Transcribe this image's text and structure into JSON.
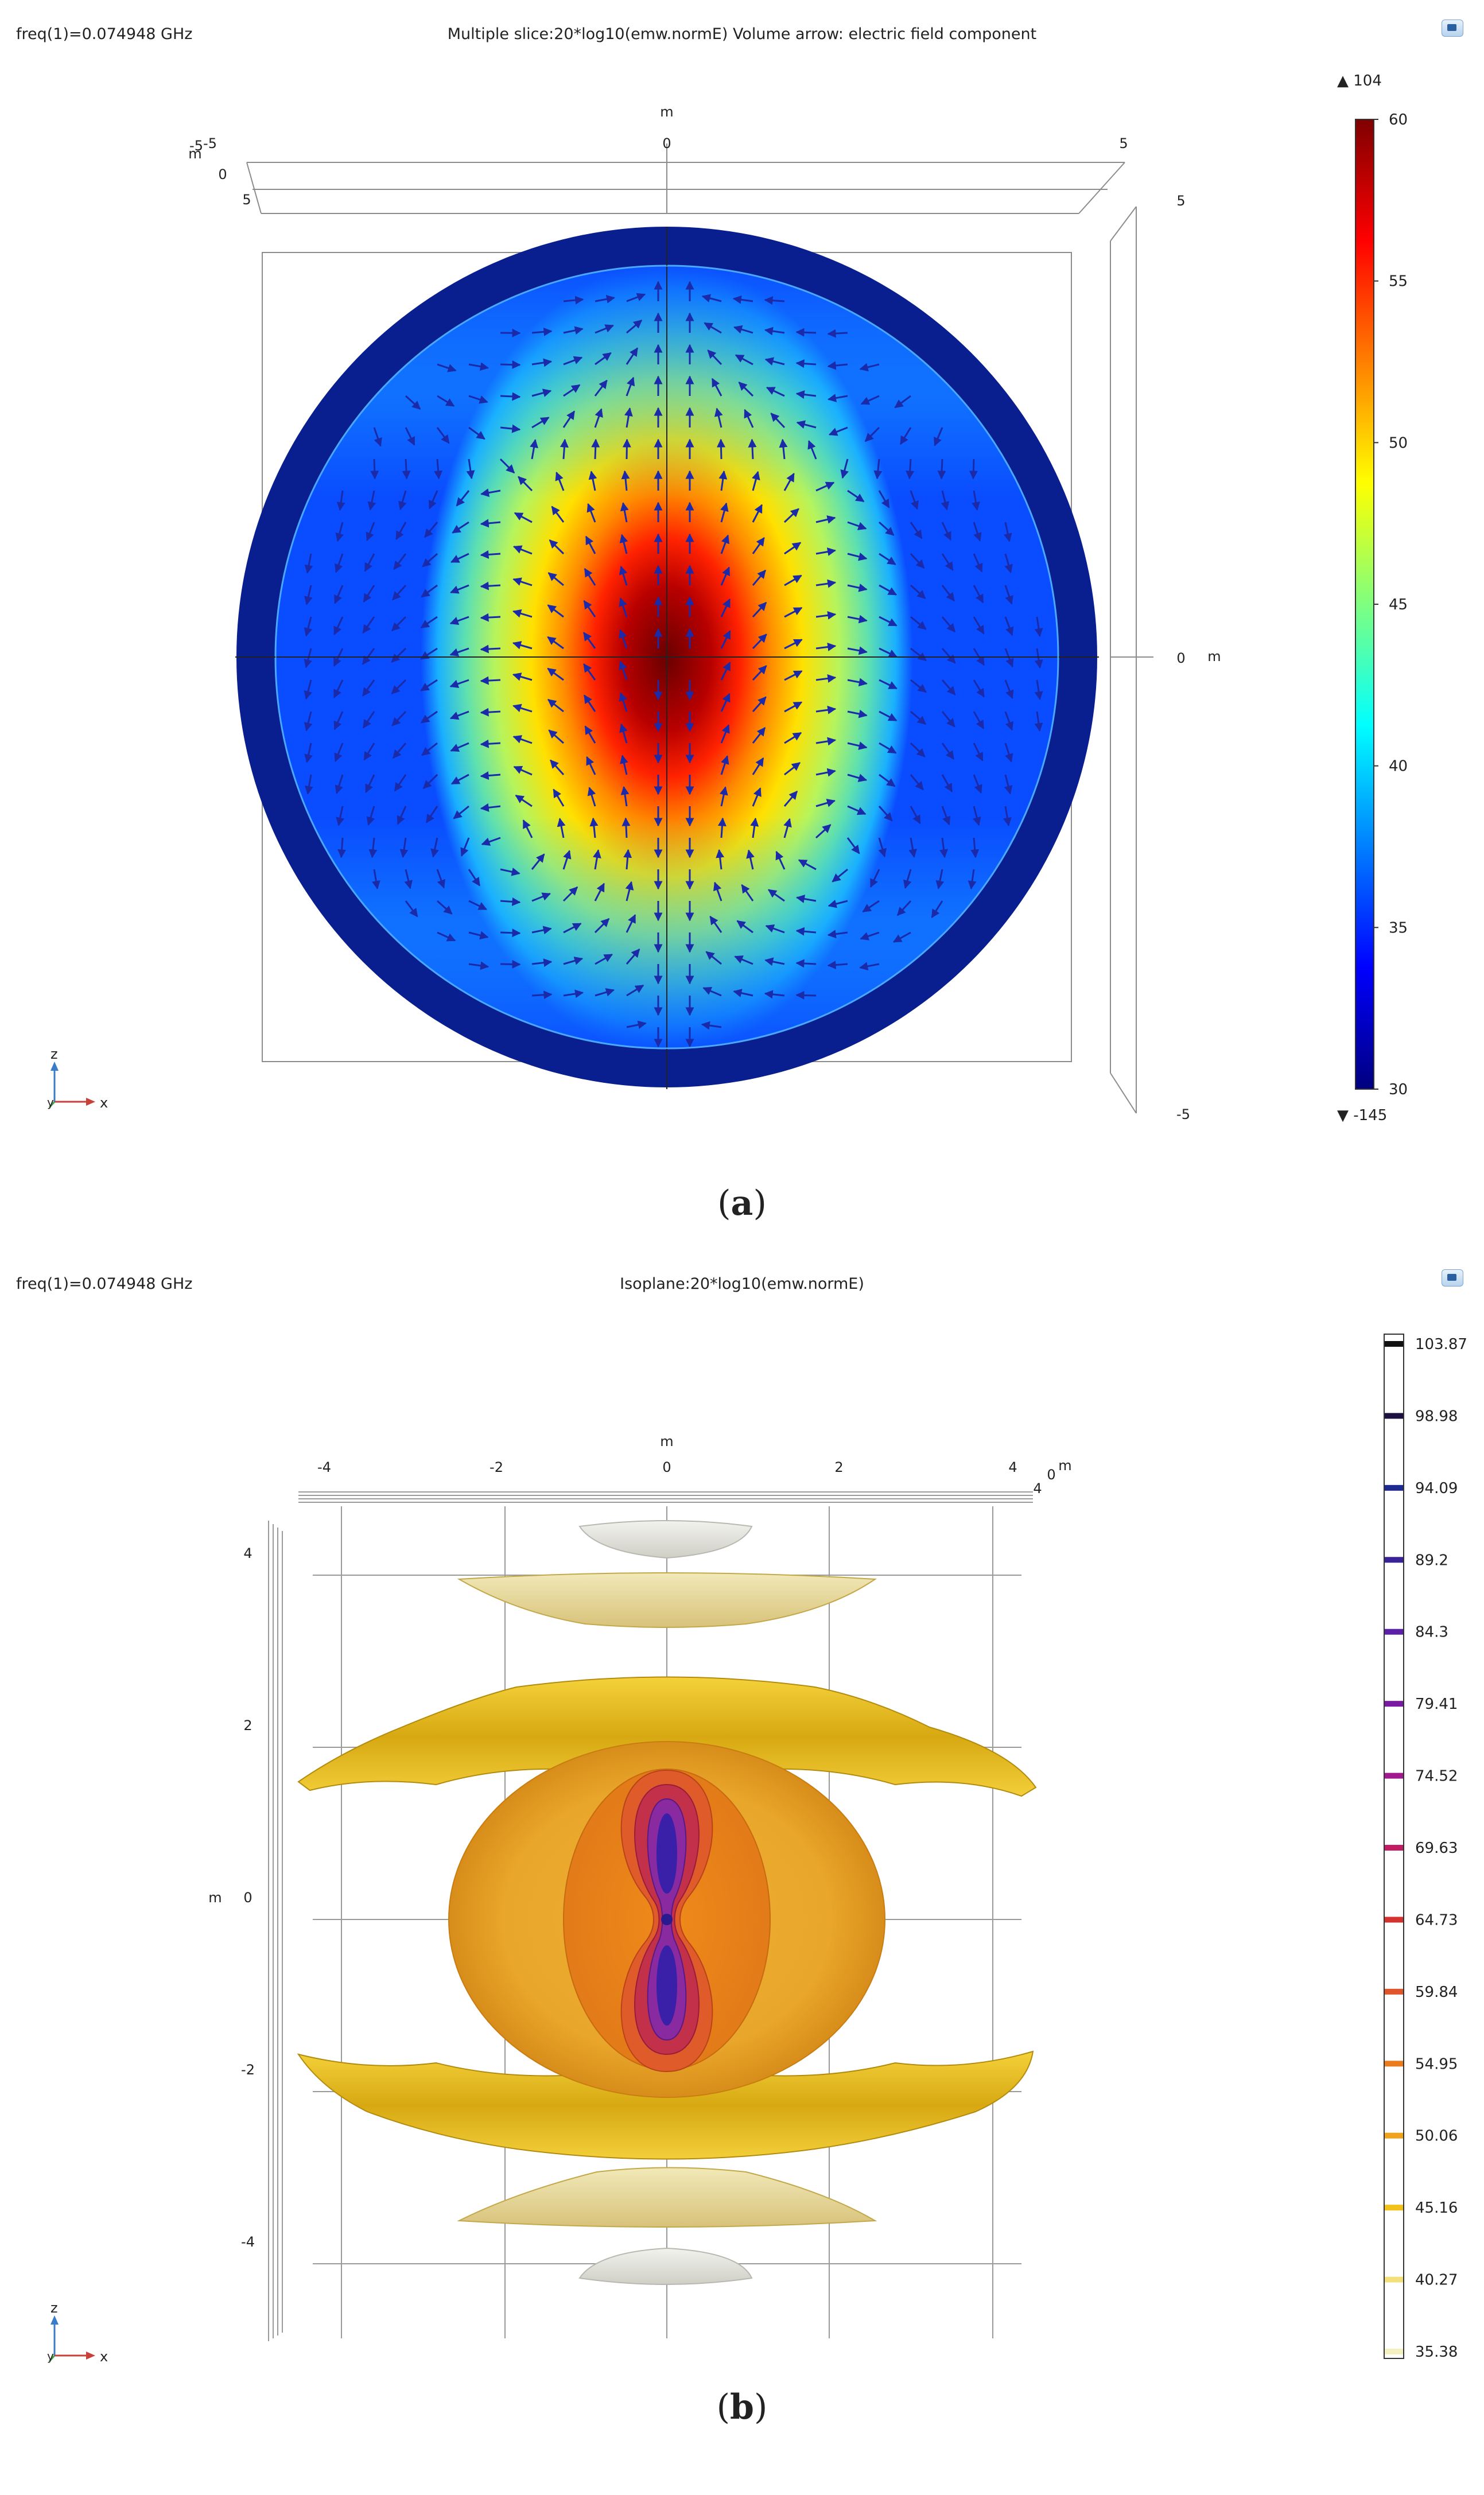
{
  "panel_a": {
    "freq_label": "freq(1)=0.074948 GHz",
    "title": "Multiple slice:20*log10(emw.normE) Volume arrow: electric field component",
    "caption_open": "(",
    "caption_letter": "a",
    "caption_close": ")",
    "triad": {
      "z": "z",
      "x": "x",
      "y": "y"
    }
  },
  "panel_b": {
    "freq_label": "freq(1)=0.074948 GHz",
    "title": "Isoplane:20*log10(emw.normE)",
    "caption_open": "(",
    "caption_letter": "b",
    "caption_close": ")",
    "triad": {
      "z": "z",
      "x": "x",
      "y": "y"
    }
  },
  "colors": {
    "jet": [
      "#00007f",
      "#0000ff",
      "#007fff",
      "#00ffff",
      "#7fff7f",
      "#ffff00",
      "#ff7f00",
      "#ff0000",
      "#7f0000"
    ],
    "arrow": "#1a2aa8",
    "ring": "#0a1f8f",
    "grid": "#9a9a9a",
    "iso_yellow": "#e8c21a",
    "iso_orange": "#e59a1a"
  },
  "chart_data": [
    {
      "type": "heatmap",
      "title": "Multiple slice:20*log10(emw.normE) Volume arrow: electric field component",
      "colorbar": {
        "range": [
          30,
          60
        ],
        "ticks": [
          "60",
          "55",
          "50",
          "45",
          "40",
          "35",
          "30"
        ],
        "max_marker": "▲ 104",
        "min_marker": "▼ -145"
      },
      "x_axis": {
        "unit": "m",
        "ticks": [
          "-5",
          "0",
          "5"
        ]
      },
      "y_axis": {
        "ticks": [
          "-5",
          "0",
          "5"
        ]
      },
      "z_axis": {
        "unit": "m",
        "ticks": [
          "5",
          "0",
          "-5"
        ]
      },
      "field": "peak at center, elongated vertically; lobes spread horizontally"
    },
    {
      "type": "heatmap",
      "title": "Isoplane:20*log10(emw.normE)",
      "levels": [
        "103.87",
        "98.98",
        "94.09",
        "89.2",
        "84.3",
        "79.41",
        "74.52",
        "69.63",
        "64.73",
        "59.84",
        "54.95",
        "50.06",
        "45.16",
        "40.27",
        "35.38"
      ],
      "level_colors": [
        "#111111",
        "#1c1140",
        "#1d2a8f",
        "#3a2399",
        "#5a21a8",
        "#7a1aa0",
        "#a0198f",
        "#c21d64",
        "#d4322e",
        "#e0552a",
        "#ec7c1a",
        "#f0a21a",
        "#f2c21a",
        "#f3e07a",
        "#f5f0c0"
      ],
      "x_axis": {
        "unit": "m",
        "ticks": [
          "-4",
          "-2",
          "0",
          "2",
          "4"
        ]
      },
      "y_axis": {
        "unit": "m",
        "ticks": [
          "0",
          "4"
        ]
      },
      "z_axis": {
        "unit": "m",
        "ticks": [
          "4",
          "2",
          "0",
          "-2",
          "-4"
        ]
      }
    }
  ]
}
